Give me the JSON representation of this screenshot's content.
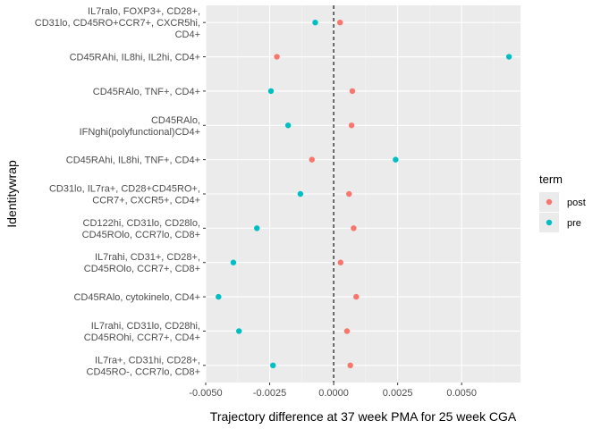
{
  "chart_data": {
    "type": "scatter",
    "title": "",
    "xlabel": "Trajectory difference at 37 week PMA for 25 week CGA",
    "ylabel": "Identitywrap",
    "xlim": [
      -0.005,
      0.0073
    ],
    "x_ticks": [
      -0.005,
      -0.0025,
      0.0,
      0.0025,
      0.005
    ],
    "x_tick_labels": [
      "-0.0050",
      "-0.0025",
      "0.0000",
      "0.0025",
      "0.0050"
    ],
    "reference_line": {
      "x": 0,
      "style": "dashed"
    },
    "grid": true,
    "background": "#ebebeb",
    "legend": {
      "title": "term",
      "position": "right"
    },
    "categories": [
      [
        "IL7ralo, FOXP3+, CD28+,",
        "CD31lo, CD45RO+CCR7+, CXCR5hi,",
        "CD4+"
      ],
      [
        "CD45RAhi, IL8hi, IL2hi, CD4+"
      ],
      [
        "CD45RAlo, TNF+, CD4+"
      ],
      [
        "CD45RAlo,",
        "IFNghi(polyfunctional)CD4+"
      ],
      [
        "CD45RAhi, IL8hi, TNF+, CD4+"
      ],
      [
        "CD31lo, IL7ra+, CD28+CD45RO+,",
        "CCR7+, CXCR5+, CD4+"
      ],
      [
        "CD122hi, CD31lo, CD28lo,",
        "CD45ROlo, CCR7lo, CD8+"
      ],
      [
        "IL7rahi, CD31+, CD28+,",
        "CD45ROlo, CCR7+, CD8+"
      ],
      [
        "CD45RAlo, cytokinelo, CD4+"
      ],
      [
        "IL7rahi, CD31lo, CD28hi,",
        "CD45ROhi, CCR7+, CD4+"
      ],
      [
        "IL7ra+, CD31hi, CD28+,",
        "CD45RO-, CCR7lo, CD8+"
      ]
    ],
    "series": [
      {
        "name": "post",
        "color": "#F8766D",
        "values": [
          0.00025,
          -0.00222,
          0.00073,
          0.0007,
          -0.00085,
          0.0006,
          0.00078,
          0.00027,
          0.00088,
          0.00052,
          0.00065
        ]
      },
      {
        "name": "pre",
        "color": "#00BFC4",
        "values": [
          -0.00072,
          0.00685,
          -0.00245,
          -0.00178,
          0.00242,
          -0.0013,
          -0.003,
          -0.00392,
          -0.0045,
          -0.0037,
          -0.00237
        ]
      }
    ]
  }
}
